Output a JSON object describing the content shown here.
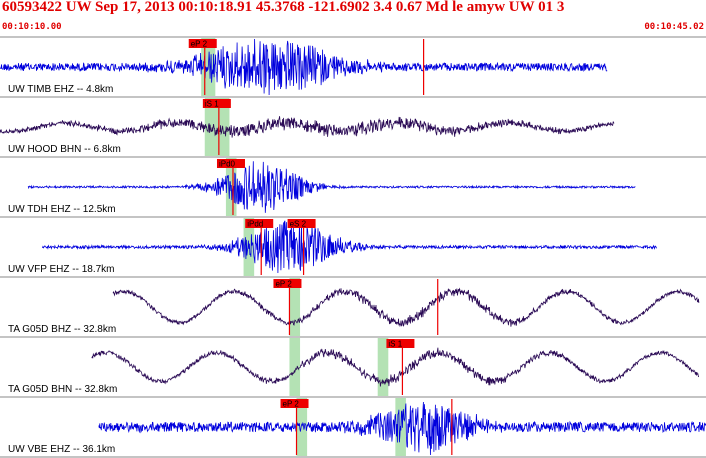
{
  "header": {
    "title": "60593422 UW Sep 17, 2013 00:10:18.91    45.3768 -121.6902  3.4 0.67 Md le amyw UW 01    3",
    "start_time": "00:10:10.00",
    "end_time": "00:10:45.02"
  },
  "colors": {
    "header_text": "#e00000",
    "trace_blue": "#0000dd",
    "trace_dark": "#2a0a55",
    "pick_marker": "#ee0000",
    "pick_window": "#b4e2b4",
    "panel_border": "#888888"
  },
  "panels": [
    {
      "label": "UW TIMB EHZ -- 4.8km",
      "color": "trace_blue",
      "mode": "noise",
      "start": 0.0,
      "end": 0.86,
      "base": 8,
      "burst_center": 0.38,
      "burst_width": 0.1,
      "burst_amp": 28,
      "picks": [
        {
          "label": "eP 2",
          "t": 0.29
        },
        {
          "label": "",
          "t": 0.6
        }
      ],
      "windows": [
        0.285,
        0.305
      ]
    },
    {
      "label": "UW HOOD BHN -- 6.8km",
      "color": "trace_dark",
      "mode": "wave",
      "start": 0.0,
      "end": 0.87,
      "base": 7,
      "burst_center": 0.45,
      "burst_width": 0.3,
      "burst_amp": 6,
      "picks": [
        {
          "label": "iS 1",
          "t": 0.31
        }
      ],
      "windows": [
        0.29,
        0.325
      ]
    },
    {
      "label": "UW TDH EHZ -- 12.5km",
      "color": "trace_blue",
      "mode": "noise",
      "start": 0.04,
      "end": 0.9,
      "base": 2,
      "burst_center": 0.37,
      "burst_width": 0.06,
      "burst_amp": 26,
      "picks": [
        {
          "label": "iPd0",
          "t": 0.33
        }
      ],
      "windows": [
        0.32,
        0.335
      ]
    },
    {
      "label": "UW VFP EHZ -- 18.7km",
      "color": "trace_blue",
      "mode": "noise",
      "start": 0.06,
      "end": 0.93,
      "base": 3,
      "burst_center": 0.41,
      "burst_width": 0.07,
      "burst_amp": 26,
      "picks": [
        {
          "label": "iPdd",
          "t": 0.37
        },
        {
          "label": "eS 2",
          "t": 0.43
        }
      ],
      "windows": [
        0.345,
        0.36
      ]
    },
    {
      "label": "TA G05D BHZ -- 32.8km",
      "color": "trace_dark",
      "mode": "wave",
      "start": 0.16,
      "end": 0.99,
      "base": 26,
      "burst_center": 0.6,
      "burst_width": 0.2,
      "burst_amp": 4,
      "picks": [
        {
          "label": "eP 2",
          "t": 0.41
        },
        {
          "label": "",
          "t": 0.62
        }
      ],
      "windows": [
        0.41,
        0.425
      ]
    },
    {
      "label": "TA G05D BHN -- 32.8km",
      "color": "trace_dark",
      "mode": "wave",
      "start": 0.13,
      "end": 0.99,
      "base": 24,
      "burst_center": 0.57,
      "burst_width": 0.2,
      "burst_amp": 4,
      "picks": [
        {
          "label": "iS 1",
          "t": 0.57
        }
      ],
      "windows": [
        0.41,
        0.425,
        0.535,
        0.55
      ]
    },
    {
      "label": "UW VBE EHZ -- 36.1km",
      "color": "trace_blue",
      "mode": "noise",
      "start": 0.14,
      "end": 1.0,
      "base": 10,
      "burst_center": 0.6,
      "burst_width": 0.07,
      "burst_amp": 26,
      "picks": [
        {
          "label": "eP 2",
          "t": 0.42
        },
        {
          "label": "",
          "t": 0.64
        }
      ],
      "windows": [
        0.42,
        0.435,
        0.56,
        0.575
      ]
    }
  ]
}
